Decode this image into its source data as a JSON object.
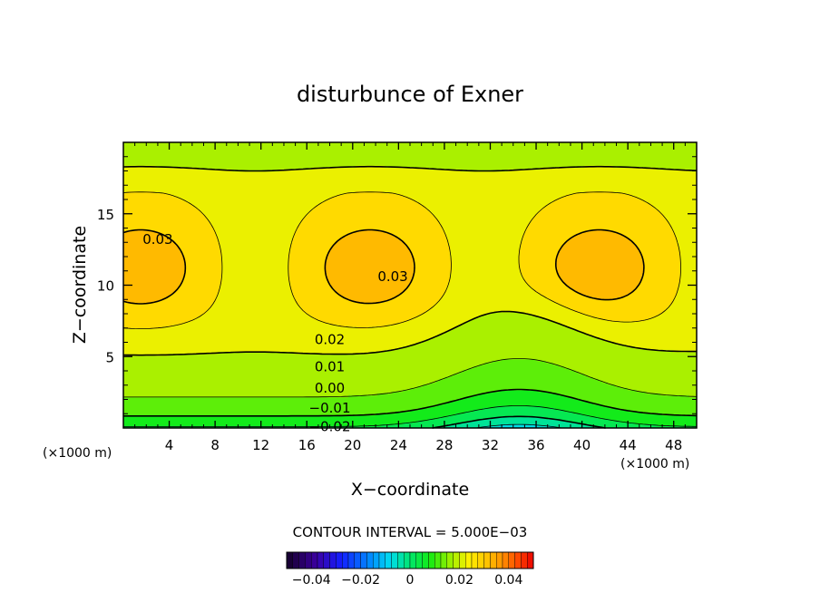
{
  "chart_data": {
    "type": "heatmap",
    "title": "disturbunce of Exner",
    "xlabel": "X−coordinate",
    "ylabel": "Z−coordinate",
    "x_unit": "(×1000 m)",
    "y_unit": "(×1000 m)",
    "xlim": [
      0,
      50
    ],
    "ylim": [
      0,
      20
    ],
    "x_ticks": [
      "4",
      "8",
      "12",
      "16",
      "20",
      "24",
      "28",
      "32",
      "36",
      "40",
      "44",
      "48"
    ],
    "x_tick_values": [
      4,
      8,
      12,
      16,
      20,
      24,
      28,
      32,
      36,
      40,
      44,
      48
    ],
    "y_ticks": [
      "5",
      "10",
      "15"
    ],
    "y_tick_values": [
      5,
      10,
      15
    ],
    "contour_interval_text": "CONTOUR INTERVAL =  5.000E−03",
    "contour_interval": 0.005,
    "contour_labels": [
      {
        "text": "0.03",
        "x": 3,
        "z": 13.2
      },
      {
        "text": "0.03",
        "x": 23.5,
        "z": 10.6
      },
      {
        "text": "0.02",
        "x": 18,
        "z": 6.2
      },
      {
        "text": "0.01",
        "x": 18,
        "z": 4.3
      },
      {
        "text": "0.00",
        "x": 18,
        "z": 2.8
      },
      {
        "text": "−0.01",
        "x": 18,
        "z": 1.4
      },
      {
        "text": "−0.02",
        "x": 18,
        "z": 0.1
      }
    ],
    "colorbar": {
      "min": -0.05,
      "max": 0.05,
      "tick_labels": [
        "−0.04",
        "−0.02",
        "0",
        "0.02",
        "0.04"
      ],
      "tick_values": [
        -0.04,
        -0.02,
        0,
        0.02,
        0.04
      ]
    }
  }
}
